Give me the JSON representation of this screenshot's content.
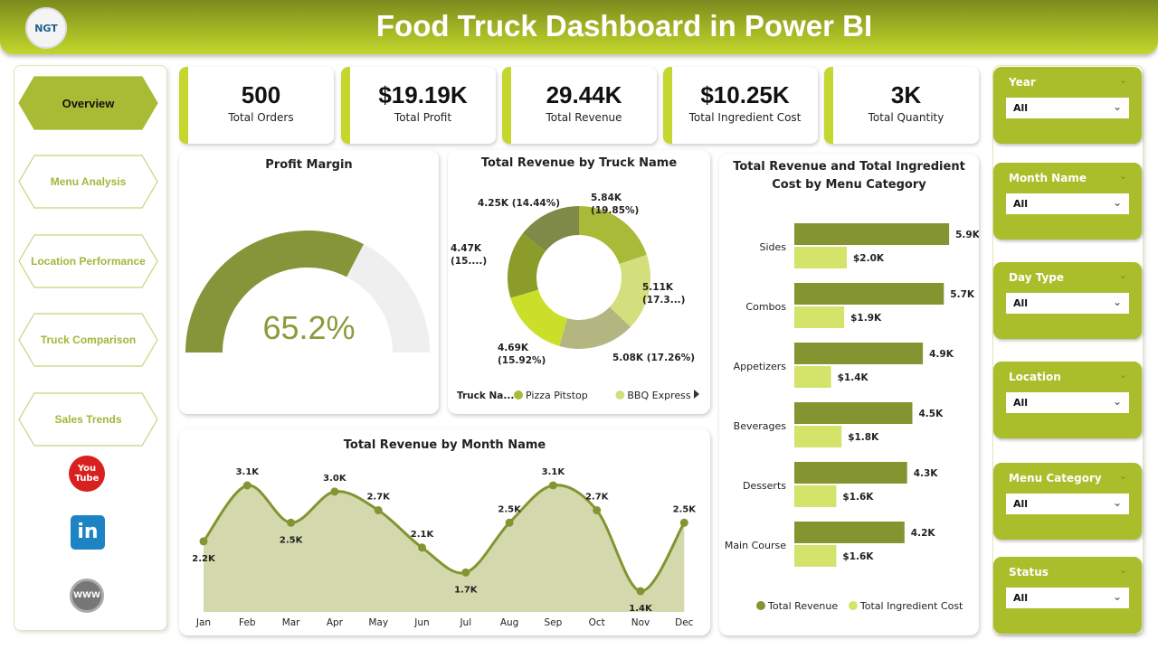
{
  "header": {
    "title": "Food Truck Dashboard in Power BI",
    "logo_text": "NGT"
  },
  "nav": {
    "items": [
      {
        "label": "Overview",
        "active": true
      },
      {
        "label": "Menu Analysis"
      },
      {
        "label": "Location Performance"
      },
      {
        "label": "Truck Comparison"
      },
      {
        "label": "Sales Trends"
      }
    ],
    "social": [
      {
        "icon": "youtube-icon",
        "text": "You Tube"
      },
      {
        "icon": "linkedin-icon",
        "text": "in"
      },
      {
        "icon": "www-globe-icon",
        "text": "WWW"
      }
    ]
  },
  "kpis": [
    {
      "value": "500",
      "label": "Total Orders"
    },
    {
      "value": "$19.19K",
      "label": "Total Profit"
    },
    {
      "value": "29.44K",
      "label": "Total Revenue"
    },
    {
      "value": "$10.25K",
      "label": "Total Ingredient Cost"
    },
    {
      "value": "3K",
      "label": "Total Quantity"
    }
  ],
  "colors": {
    "accent": "#aabd2a",
    "dark_olive": "#7f8f2e",
    "light_lime": "#d4e36a"
  },
  "chart_data": [
    {
      "type": "gauge",
      "title": "Profit Margin",
      "value": 65.2,
      "value_label": "65.2%",
      "min": 0,
      "max": 100
    },
    {
      "type": "pie",
      "title": "Total Revenue by Truck Name",
      "donut": true,
      "slices": [
        {
          "value": 5.84,
          "label": "5.84K",
          "pct_label": "(19.85%)",
          "color": "#a8ba38"
        },
        {
          "value": 5.11,
          "label": "5.11K",
          "pct_label": "(17.3...)",
          "color": "#d3df7c"
        },
        {
          "value": 5.08,
          "label": "5.08K",
          "pct_label": "(17.26%)",
          "color": "#b3b680"
        },
        {
          "value": 4.69,
          "label": "4.69K",
          "pct_label": "(15.92%)",
          "color": "#cbdf2a"
        },
        {
          "value": 4.47,
          "label": "4.47K",
          "pct_label": "(15....)",
          "color": "#8c9c2a"
        },
        {
          "value": 4.25,
          "label": "4.25K",
          "pct_label": "(14.44%)",
          "color": "#7f8a48"
        }
      ],
      "legend": {
        "title": "Truck Na...",
        "entries": [
          {
            "name": "Pizza Pitstop",
            "color": "#a8ba38"
          },
          {
            "name": "BBQ Express",
            "color": "#d3df7c"
          }
        ],
        "position": "bottom"
      }
    },
    {
      "type": "bar",
      "orientation": "horizontal",
      "title": "Total Revenue and Total Ingredient Cost by Menu Category",
      "categories": [
        "Sides",
        "Combos",
        "Appetizers",
        "Beverages",
        "Desserts",
        "Main Course"
      ],
      "series": [
        {
          "name": "Total Revenue",
          "color": "#849431",
          "values": [
            5.9,
            5.7,
            4.9,
            4.5,
            4.3,
            4.2
          ],
          "labels": [
            "5.9K",
            "5.7K",
            "4.9K",
            "4.5K",
            "4.3K",
            "4.2K"
          ]
        },
        {
          "name": "Total Ingredient Cost",
          "color": "#d4e36a",
          "values": [
            2.0,
            1.9,
            1.4,
            1.8,
            1.6,
            1.6
          ],
          "labels": [
            "$2.0K",
            "$1.9K",
            "$1.4K",
            "$1.8K",
            "$1.6K",
            "$1.6K"
          ]
        }
      ],
      "legend_position": "bottom"
    },
    {
      "type": "area",
      "title": "Total Revenue by Month Name",
      "categories": [
        "Jan",
        "Feb",
        "Mar",
        "Apr",
        "May",
        "Jun",
        "Jul",
        "Aug",
        "Sep",
        "Oct",
        "Nov",
        "Dec"
      ],
      "values": [
        2.2,
        3.1,
        2.5,
        3.0,
        2.7,
        2.1,
        1.7,
        2.5,
        3.1,
        2.7,
        1.4,
        2.5
      ],
      "labels": [
        "2.2K",
        "3.1K",
        "2.5K",
        "3.0K",
        "2.7K",
        "2.1K",
        "1.7K",
        "2.5K",
        "3.1K",
        "2.7K",
        "1.4K",
        "2.5K"
      ],
      "color": "#849431",
      "fill": "#d3d9ad"
    }
  ],
  "filters": [
    {
      "name": "Year",
      "value": "All"
    },
    {
      "name": "Month Name",
      "value": "All"
    },
    {
      "name": "Day Type",
      "value": "All"
    },
    {
      "name": "Location",
      "value": "All"
    },
    {
      "name": "Menu Category",
      "value": "All"
    },
    {
      "name": "Status",
      "value": "All"
    }
  ]
}
